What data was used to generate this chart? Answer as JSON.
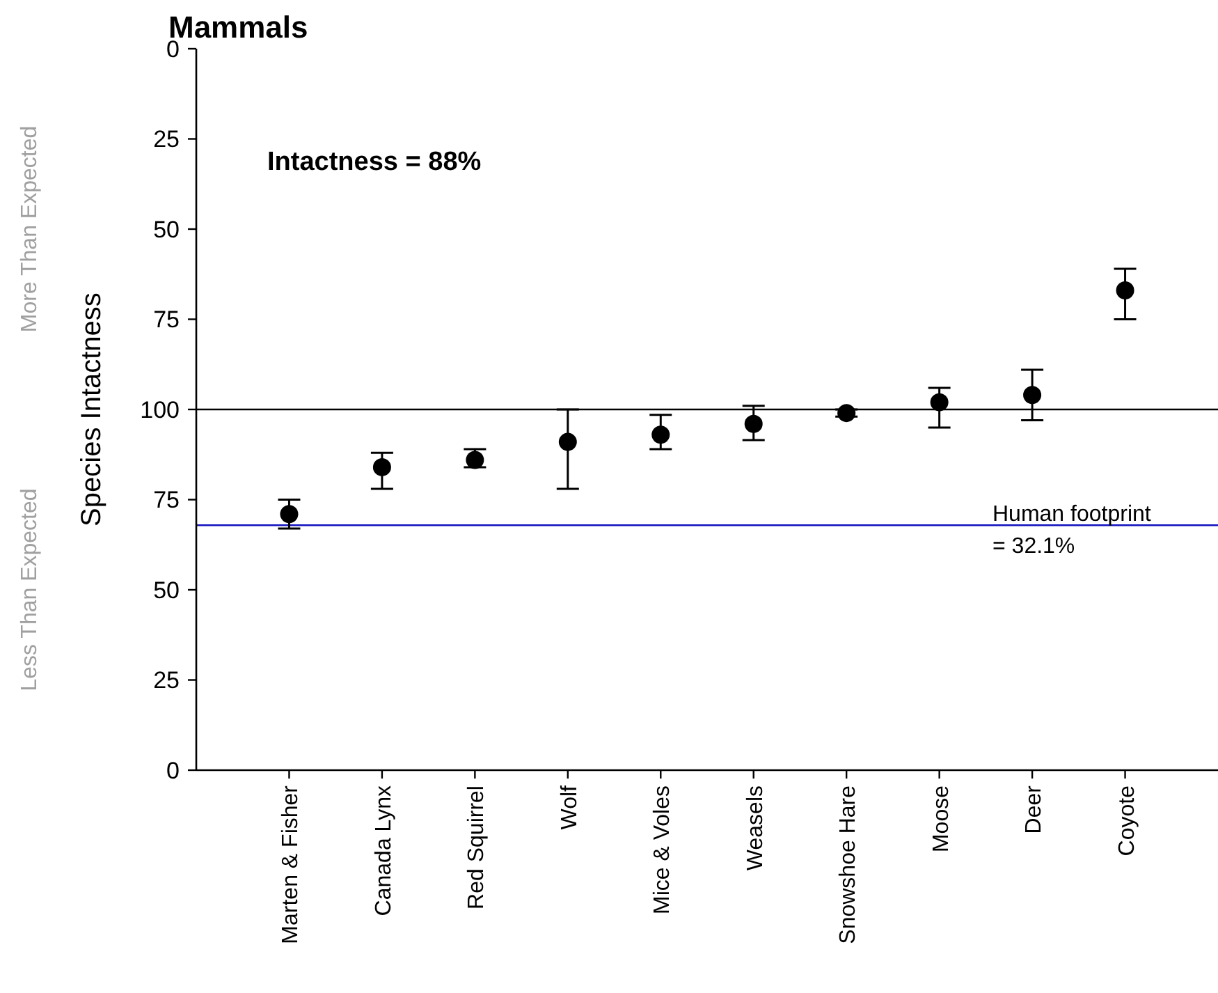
{
  "chart_data": {
    "type": "scatter",
    "title": "Mammals",
    "ylabel": "Species Intactness",
    "annotations": [
      "Intactness = 88%",
      "More Than Expected",
      "Less Than Expected",
      "Human footprint\n= 32.1%"
    ],
    "categories": [
      "Marten & Fisher",
      "Canada Lynx",
      "Red Squirrel",
      "Wolf",
      "Mice & Voles",
      "Weasels",
      "Snowshoe Hare",
      "Moose",
      "Deer",
      "Coyote"
    ],
    "series": [
      {
        "axis": "y2",
        "color": "#000000",
        "values": [
          71,
          84,
          86,
          91,
          93,
          96,
          99,
          102,
          104,
          133
        ],
        "errors": [
          [
            67,
            75
          ],
          [
            78,
            88
          ],
          [
            84,
            89
          ],
          [
            78,
            100
          ],
          [
            89,
            98.5
          ],
          [
            91.5,
            101
          ],
          [
            98,
            100
          ],
          [
            95,
            106
          ],
          [
            97,
            111
          ],
          [
            125,
            139
          ]
        ]
      }
    ],
    "marker": "circle",
    "ylim": [
      200,
      0
    ],
    "yticks": [
      0,
      25,
      50,
      75,
      100
    ],
    "y2lim": [
      0,
      200
    ],
    "y2ticks": [
      75,
      50,
      25,
      0
    ],
    "ref_lines": [
      {
        "axis": "y",
        "value": 100,
        "color": "#000000"
      },
      {
        "axis": "y2",
        "value": 67.9,
        "color": "#1010c0"
      }
    ]
  }
}
